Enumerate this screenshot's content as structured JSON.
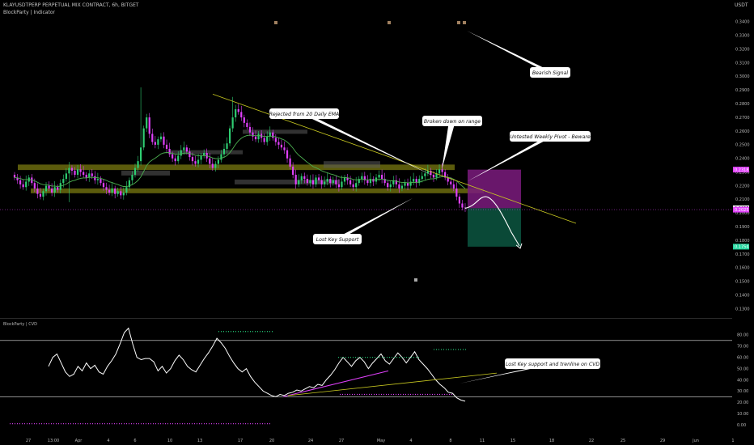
{
  "header": {
    "symbol_line": "KLAYUSDTPERP PERPETUAL MIX CONTRACT, 6h, BITGET",
    "indicator_label": "BlockParty | Indicator",
    "currency": "USDT"
  },
  "colors": {
    "background": "#000000",
    "up_candle": "#2ecc71",
    "down_candle": "#e040fb",
    "ema_line": "#4caf50",
    "trendline": "#c8c820",
    "support_zone": "#7a7a10",
    "short_risk_box": "#7b1b7e",
    "short_target_box": "#0b4d3a",
    "cvd_line": "#ffffff",
    "cvd_trend": "#e040fb",
    "cvd_level_lines": "#e0e0e0"
  },
  "chart_data": [
    {
      "type": "candlestick",
      "panel": "price",
      "title": "KLAYUSDTPERP PERPETUAL MIX CONTRACT, 6h, BITGET",
      "ylabel": "USDT",
      "ylim": [
        0.125,
        0.35
      ],
      "y_ticks": [
        "0.3400",
        "0.3300",
        "0.3200",
        "0.3100",
        "0.3000",
        "0.2900",
        "0.2800",
        "0.2700",
        "0.2600",
        "0.2500",
        "0.2400",
        "0.2300",
        "0.2200",
        "0.2100",
        "0.2000",
        "0.1900",
        "0.1800",
        "0.1700",
        "0.1600",
        "0.1500",
        "0.1400",
        "0.1300"
      ],
      "price_labels": [
        {
          "label": "0.2318",
          "value": 0.2318,
          "color": "#e040fb"
        },
        {
          "label": "0.2035",
          "value": 0.2035,
          "color": "#ffffff"
        },
        {
          "label": "0.2025",
          "value": 0.2025,
          "color": "#e040fb"
        },
        {
          "label": "0.1754",
          "value": 0.1754,
          "color": "#26d7a0"
        }
      ],
      "close_series": [
        0.226,
        0.224,
        0.221,
        0.219,
        0.223,
        0.226,
        0.222,
        0.218,
        0.214,
        0.212,
        0.216,
        0.22,
        0.218,
        0.215,
        0.219,
        0.217,
        0.222,
        0.225,
        0.229,
        0.233,
        0.231,
        0.228,
        0.232,
        0.23,
        0.228,
        0.226,
        0.229,
        0.227,
        0.224,
        0.225,
        0.222,
        0.219,
        0.217,
        0.215,
        0.218,
        0.214,
        0.216,
        0.213,
        0.215,
        0.219,
        0.224,
        0.228,
        0.233,
        0.238,
        0.248,
        0.262,
        0.27,
        0.258,
        0.252,
        0.25,
        0.254,
        0.256,
        0.25,
        0.247,
        0.243,
        0.24,
        0.238,
        0.242,
        0.246,
        0.248,
        0.245,
        0.241,
        0.238,
        0.236,
        0.239,
        0.242,
        0.244,
        0.24,
        0.236,
        0.233,
        0.236,
        0.239,
        0.243,
        0.247,
        0.251,
        0.262,
        0.27,
        0.276,
        0.274,
        0.27,
        0.266,
        0.263,
        0.259,
        0.256,
        0.254,
        0.258,
        0.255,
        0.252,
        0.256,
        0.259,
        0.255,
        0.252,
        0.25,
        0.248,
        0.246,
        0.24,
        0.234,
        0.228,
        0.221,
        0.224,
        0.227,
        0.225,
        0.222,
        0.224,
        0.221,
        0.226,
        0.224,
        0.221,
        0.223,
        0.225,
        0.222,
        0.224,
        0.221,
        0.219,
        0.223,
        0.226,
        0.224,
        0.221,
        0.219,
        0.222,
        0.225,
        0.227,
        0.224,
        0.222,
        0.225,
        0.223,
        0.226,
        0.228,
        0.225,
        0.222,
        0.219,
        0.221,
        0.224,
        0.221,
        0.218,
        0.22,
        0.222,
        0.22,
        0.223,
        0.225,
        0.222,
        0.225,
        0.227,
        0.229,
        0.231,
        0.228,
        0.226,
        0.229,
        0.232,
        0.23,
        0.226,
        0.223,
        0.221,
        0.218,
        0.212,
        0.207,
        0.204,
        0.2035
      ],
      "annotations": [
        "Bearish Signal",
        "Rejected from 20 Daily EMA",
        "Broken down on range",
        "Untested Weekly Pivot - Beware",
        "Lost Key Support"
      ]
    },
    {
      "type": "line",
      "panel": "indicator",
      "title": "BlockParty | CVD",
      "ylim": [
        -5,
        90
      ],
      "y_ticks": [
        "80.00",
        "70.00",
        "60.00",
        "50.00",
        "40.00",
        "30.00",
        "20.00",
        "10.00",
        "0.00"
      ],
      "levels": [
        75,
        25
      ],
      "series": [
        {
          "name": "BlockParty | CVD",
          "values": [
            52,
            60,
            63,
            55,
            47,
            43,
            45,
            52,
            48,
            55,
            50,
            53,
            47,
            45,
            52,
            57,
            63,
            72,
            82,
            86,
            72,
            60,
            58,
            59,
            59,
            56,
            48,
            52,
            46,
            50,
            57,
            62,
            58,
            52,
            49,
            47,
            53,
            59,
            64,
            70,
            77,
            73,
            68,
            61,
            55,
            50,
            47,
            50,
            43,
            38,
            34,
            30,
            28,
            26,
            25,
            27,
            26,
            28,
            29,
            31,
            30,
            32,
            34,
            33,
            36,
            35,
            40,
            44,
            49,
            55,
            60,
            56,
            52,
            57,
            60,
            56,
            50,
            55,
            59,
            63,
            57,
            54,
            59,
            64,
            60,
            55,
            60,
            65,
            58,
            54,
            50,
            45,
            40,
            36,
            33,
            29,
            28,
            24,
            22,
            21
          ]
        }
      ],
      "annotations": [
        "Lost Key support and trenline on CVD"
      ]
    }
  ],
  "x_axis": {
    "labels": [
      "27",
      "13:00",
      "Apr",
      "4",
      "6",
      "10",
      "13",
      "17",
      "20",
      "24",
      "27",
      "May",
      "4",
      "8",
      "11",
      "15",
      "18",
      "22",
      "25",
      "29",
      "Jun",
      "1"
    ]
  },
  "callouts": {
    "bearish_signal": "Bearish Signal",
    "rejected_ema": "Rejected from 20 Daily EMA",
    "broken_down": "Broken down on range",
    "untested_pivot": "Untested Weekly Pivot - Beware",
    "lost_support": "Lost Key Support",
    "cvd_note": "Lost Key support and trenline on CVD"
  }
}
